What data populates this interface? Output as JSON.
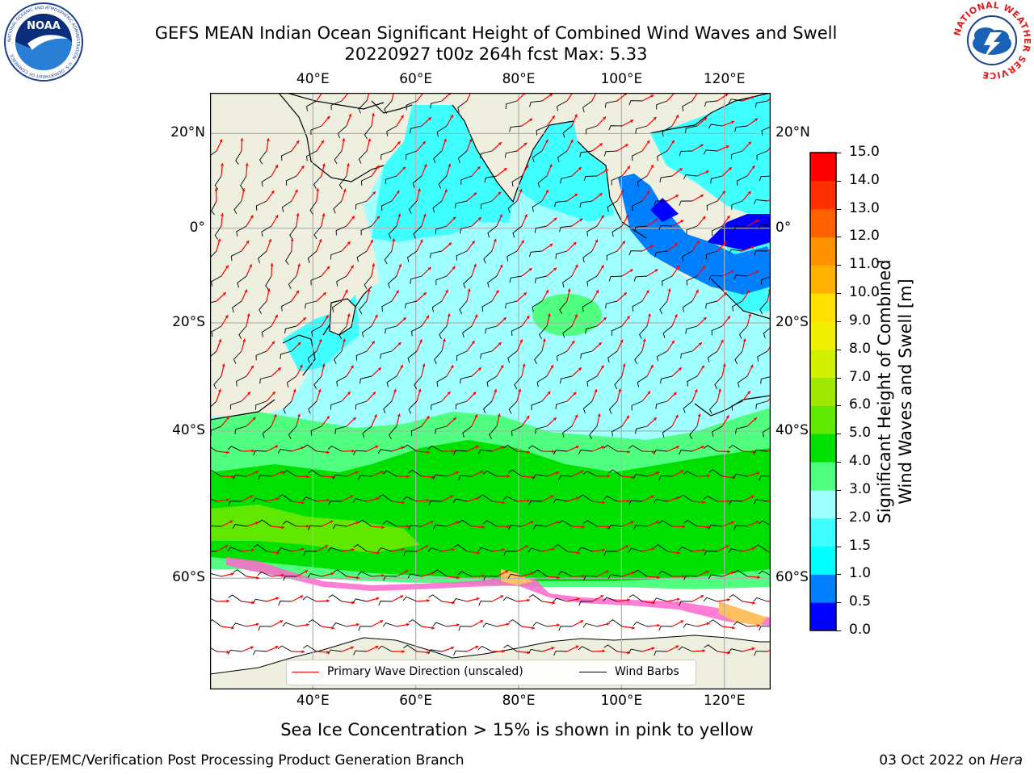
{
  "header": {
    "title_line1": "GEFS MEAN Indian Ocean Significant Height of Combined Wind Waves and Swell",
    "title_line2": "20220927 t00z 264h fcst   Max: 5.33"
  },
  "logos": {
    "left": {
      "name": "noaa-logo",
      "text": "NOAA",
      "ring_text": "NATIONAL OCEANIC AND ATMOSPHERIC ADMINISTRATION · U.S. DEPARTMENT OF COMMERCE"
    },
    "right": {
      "name": "nws-logo",
      "ring_text": "NATIONAL WEATHER SERVICE"
    }
  },
  "map": {
    "lon_labels": [
      "40°E",
      "60°E",
      "80°E",
      "100°E",
      "120°E"
    ],
    "lat_labels": [
      "20°N",
      "0°",
      "20°S",
      "40°S",
      "60°S"
    ],
    "lon_range": [
      20,
      129
    ],
    "lat_range": [
      -70,
      28
    ],
    "lons": [
      40,
      60,
      80,
      100,
      120
    ],
    "lats": [
      20,
      0,
      -20,
      -40,
      -60
    ],
    "land_color": "#efefdf",
    "ice_note": "Sea Ice Concentration > 15% is shown in pink to yellow"
  },
  "legend": {
    "entries": [
      {
        "label": "Primary Wave Direction (unscaled)",
        "color": "#ff0000"
      },
      {
        "label": "Wind Barbs",
        "color": "#000000"
      }
    ]
  },
  "colorbar": {
    "label_line1": "Significant Height of Combined",
    "label_line2": "Wind Waves and Swell [m]",
    "ticks": [
      "0.0",
      "0.5",
      "1.0",
      "1.5",
      "2.0",
      "3.0",
      "4.0",
      "5.0",
      "6.0",
      "7.0",
      "8.0",
      "9.0",
      "10.0",
      "11.0",
      "12.0",
      "13.0",
      "14.0",
      "15.0"
    ],
    "colors": [
      "#0000ff",
      "#0080ff",
      "#00ffff",
      "#40ffff",
      "#a0ffff",
      "#50ff80",
      "#00e000",
      "#60e800",
      "#a0e800",
      "#d0f000",
      "#f0f000",
      "#ffe000",
      "#ffb000",
      "#ff9000",
      "#ff6000",
      "#ff3000",
      "#ff0000"
    ]
  },
  "footer": {
    "left": "NCEP/EMC/Verification Post Processing Product Generation Branch",
    "right_prefix": "03 Oct 2022 on ",
    "right_host": "Hera"
  }
}
